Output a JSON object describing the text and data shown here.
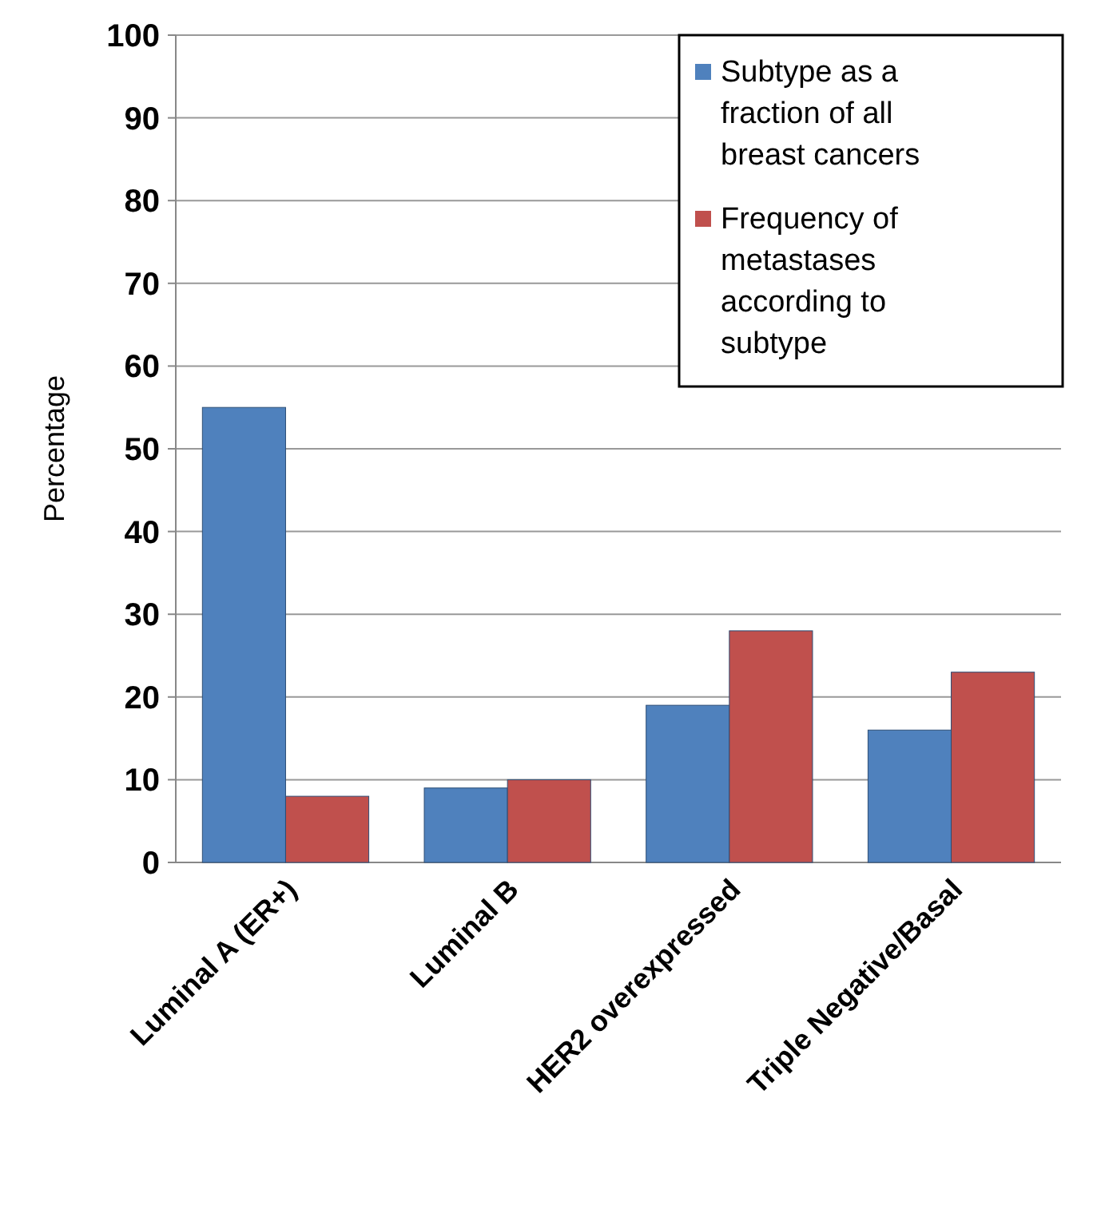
{
  "chart_data": {
    "type": "bar",
    "ylabel": "Percentage",
    "categories": [
      "Luminal A (ER+)",
      "Luminal B",
      "HER2 overexpressed",
      "Triple Negative/Basal"
    ],
    "series": [
      {
        "name": "Subtype as a fraction of all breast cancers",
        "color": "#4f81bd",
        "values": [
          55,
          9,
          19,
          16
        ]
      },
      {
        "name": "Frequency of metastases according to subtype",
        "color": "#c0504d",
        "values": [
          8,
          10,
          28,
          23
        ]
      }
    ],
    "ylim": [
      0,
      100
    ],
    "yticks": [
      0,
      10,
      20,
      30,
      40,
      50,
      60,
      70,
      80,
      90,
      100
    ],
    "grid": "y",
    "legend": "top right"
  }
}
